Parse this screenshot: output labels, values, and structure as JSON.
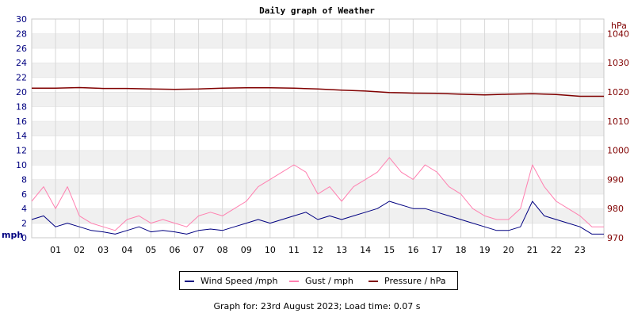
{
  "chart_data": {
    "type": "line",
    "title": "Daily graph of Weather",
    "x_label": "",
    "x_ticks": [
      "01",
      "02",
      "03",
      "04",
      "05",
      "06",
      "07",
      "08",
      "09",
      "10",
      "11",
      "12",
      "13",
      "14",
      "15",
      "16",
      "17",
      "18",
      "19",
      "20",
      "21",
      "22",
      "23"
    ],
    "x_range_hours": [
      0,
      24
    ],
    "y_left": {
      "label": "mph",
      "min": 0,
      "max": 30,
      "ticks": [
        0,
        2,
        4,
        6,
        8,
        10,
        12,
        14,
        16,
        18,
        20,
        22,
        24,
        26,
        28,
        30
      ]
    },
    "y_right": {
      "label": "hPa",
      "min": 970,
      "max": 1045,
      "ticks": [
        970,
        980,
        990,
        1000,
        1010,
        1020,
        1030,
        1040
      ]
    },
    "grid": "horizontal-banded",
    "legend_position": "bottom",
    "series": [
      {
        "name": "Wind Speed /mph",
        "axis": "left",
        "color": "#000080",
        "x": [
          0,
          0.5,
          1,
          1.5,
          2,
          2.5,
          3,
          3.5,
          4,
          4.5,
          5,
          5.5,
          6,
          6.5,
          7,
          7.5,
          8,
          8.5,
          9,
          9.5,
          10,
          10.5,
          11,
          11.5,
          12,
          12.5,
          13,
          13.5,
          14,
          14.5,
          15,
          15.5,
          16,
          16.5,
          17,
          17.5,
          18,
          18.5,
          19,
          19.5,
          20,
          20.5,
          21,
          21.5,
          22,
          22.5,
          23,
          23.5,
          24
        ],
        "values": [
          2.5,
          3,
          1.5,
          2,
          1.5,
          1,
          0.8,
          0.5,
          1,
          1.5,
          0.8,
          1,
          0.8,
          0.5,
          1,
          1.2,
          1,
          1.5,
          2,
          2.5,
          2,
          2.5,
          3,
          3.5,
          2.5,
          3,
          2.5,
          3,
          3.5,
          4,
          5,
          4.5,
          4,
          4,
          3.5,
          3,
          2.5,
          2,
          1.5,
          1,
          1,
          1.5,
          5,
          3,
          2.5,
          2,
          1.5,
          0.5,
          0.5
        ]
      },
      {
        "name": "Gust / mph",
        "axis": "left",
        "color": "#ff80b0",
        "x": [
          0,
          0.5,
          1,
          1.5,
          2,
          2.5,
          3,
          3.5,
          4,
          4.5,
          5,
          5.5,
          6,
          6.5,
          7,
          7.5,
          8,
          8.5,
          9,
          9.5,
          10,
          10.5,
          11,
          11.5,
          12,
          12.5,
          13,
          13.5,
          14,
          14.5,
          15,
          15.5,
          16,
          16.5,
          17,
          17.5,
          18,
          18.5,
          19,
          19.5,
          20,
          20.5,
          21,
          21.5,
          22,
          22.5,
          23,
          23.5,
          24
        ],
        "values": [
          5,
          7,
          4,
          7,
          3,
          2,
          1.5,
          1,
          2.5,
          3,
          2,
          2.5,
          2,
          1.5,
          3,
          3.5,
          3,
          4,
          5,
          7,
          8,
          9,
          10,
          9,
          6,
          7,
          5,
          7,
          8,
          9,
          11,
          9,
          8,
          10,
          9,
          7,
          6,
          4,
          3,
          2.5,
          2.5,
          4,
          10,
          7,
          5,
          4,
          3,
          1.5,
          1.5
        ]
      },
      {
        "name": "Pressure / hPa",
        "axis": "right",
        "color": "#800000",
        "x": [
          0,
          1,
          2,
          3,
          4,
          5,
          6,
          7,
          8,
          9,
          10,
          11,
          12,
          13,
          14,
          15,
          16,
          17,
          18,
          19,
          20,
          21,
          22,
          23,
          24
        ],
        "values": [
          1021.3,
          1021.3,
          1021.5,
          1021.2,
          1021.2,
          1021.0,
          1020.9,
          1021.0,
          1021.3,
          1021.4,
          1021.4,
          1021.3,
          1021.0,
          1020.6,
          1020.3,
          1019.8,
          1019.6,
          1019.5,
          1019.2,
          1019.0,
          1019.2,
          1019.4,
          1019.1,
          1018.5,
          1018.5
        ]
      }
    ]
  },
  "footer": {
    "text": "Graph for: 23rd August 2023; Load time: 0.07 s"
  }
}
